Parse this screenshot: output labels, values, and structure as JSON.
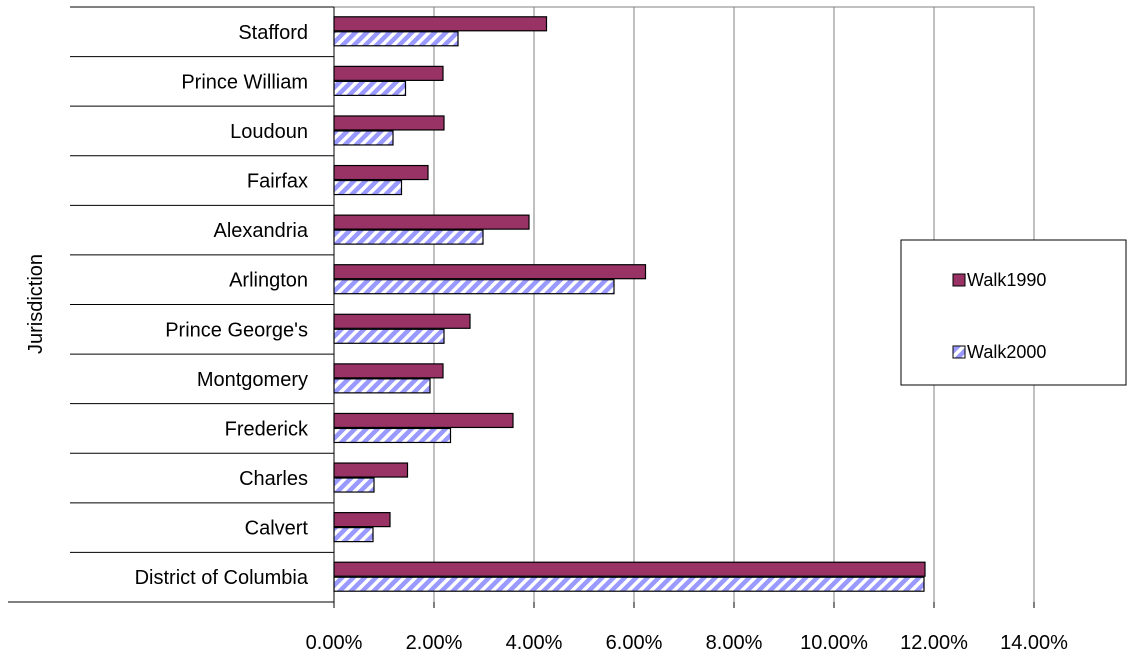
{
  "chart_data": {
    "type": "bar",
    "orientation": "horizontal",
    "title": "",
    "xlabel": "",
    "ylabel": "Jurisdiction",
    "categories": [
      "Stafford",
      "Prince William",
      "Loudoun",
      "Fairfax",
      "Alexandria",
      "Arlington",
      "Prince George's",
      "Montgomery",
      "Frederick",
      "Charles",
      "Calvert",
      "District of Columbia"
    ],
    "series": [
      {
        "name": "Walk1990",
        "color": "#993366",
        "pattern": "solid",
        "values": [
          0.0425,
          0.0218,
          0.022,
          0.0188,
          0.039,
          0.0623,
          0.0272,
          0.0218,
          0.0358,
          0.0147,
          0.0112,
          0.1182
        ]
      },
      {
        "name": "Walk2000",
        "color": "#9999ff",
        "pattern": "diagonal-stripes",
        "values": [
          0.0248,
          0.0143,
          0.0118,
          0.0135,
          0.0298,
          0.056,
          0.022,
          0.0192,
          0.0233,
          0.008,
          0.0078,
          0.118
        ]
      }
    ],
    "xlim": [
      0,
      0.14
    ],
    "xticks": [
      0,
      0.02,
      0.04,
      0.06,
      0.08,
      0.1,
      0.12,
      0.14
    ],
    "xtick_labels": [
      "0.00%",
      "2.00%",
      "4.00%",
      "6.00%",
      "8.00%",
      "10.00%",
      "12.00%",
      "14.00%"
    ],
    "grid": "vertical",
    "legend_position": "right"
  }
}
